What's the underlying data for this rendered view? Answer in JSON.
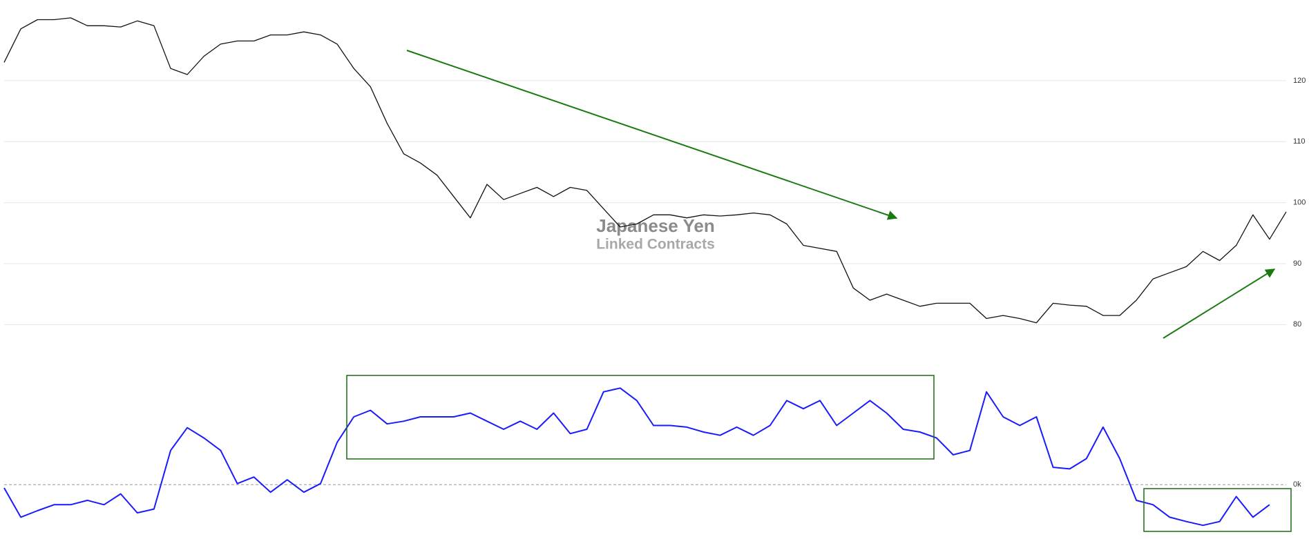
{
  "chart_data": [
    {
      "type": "line",
      "title": "Japanese Yen",
      "subtitle": "Linked Contracts",
      "series": [
        {
          "color": "#111111",
          "values": [
            123,
            128.5,
            130,
            130,
            130.3,
            129,
            129,
            128.8,
            129.8,
            129,
            122,
            121,
            124,
            126,
            126.5,
            126.5,
            127.5,
            127.5,
            128,
            127.5,
            126,
            122,
            119,
            113,
            108,
            106.5,
            104.5,
            101,
            97.5,
            103,
            100.5,
            101.5,
            102.5,
            101,
            102.5,
            102,
            99,
            96,
            96.5,
            98,
            98,
            97.5,
            98,
            97.8,
            98,
            98.3,
            98,
            96.5,
            93,
            92.5,
            92,
            86,
            84,
            85,
            84,
            83,
            83.5,
            83.5,
            83.5,
            81,
            81.5,
            81,
            80.3,
            83.5,
            83.2,
            83,
            81.5,
            81.5,
            84,
            87.5,
            88.5,
            89.5,
            92,
            90.5,
            93,
            98,
            94,
            98.5
          ]
        }
      ],
      "ylim": [
        78,
        133
      ],
      "yticks": [
        80,
        90,
        100,
        110,
        120
      ],
      "grid": true
    },
    {
      "type": "line",
      "series": [
        {
          "color": "#1a1aff",
          "values": [
            -0.6,
            -6,
            -4.8,
            -3.7,
            -3.7,
            -2.9,
            -3.7,
            -1.7,
            -5.2,
            -4.5,
            6.3,
            10.5,
            8.6,
            6.3,
            0.2,
            1.4,
            -1.4,
            0.9,
            -1.4,
            0.2,
            7.8,
            12.5,
            13.7,
            11.2,
            11.7,
            12.5,
            12.5,
            12.5,
            13.2,
            11.7,
            10.2,
            11.7,
            10.2,
            13.2,
            9.4,
            10.2,
            17.1,
            17.8,
            15.5,
            10.9,
            10.9,
            10.6,
            9.7,
            9.1,
            10.6,
            9.1,
            10.9,
            15.5,
            14,
            15.5,
            10.9,
            13.2,
            15.5,
            13.2,
            10.2,
            9.7,
            8.6,
            5.5,
            6.3,
            17.1,
            12.5,
            10.9,
            12.5,
            3.2,
            2.9,
            4.8,
            10.6,
            4.8,
            -2.9,
            -3.7,
            -6,
            -6.8,
            -7.5,
            -6.8,
            -2.2,
            -6,
            -3.7
          ]
        }
      ],
      "ylim": [
        -9,
        20
      ],
      "yticks": [
        {
          "value": 0,
          "label": "0k"
        }
      ],
      "grid": true,
      "grid_style": "dashed"
    }
  ]
}
